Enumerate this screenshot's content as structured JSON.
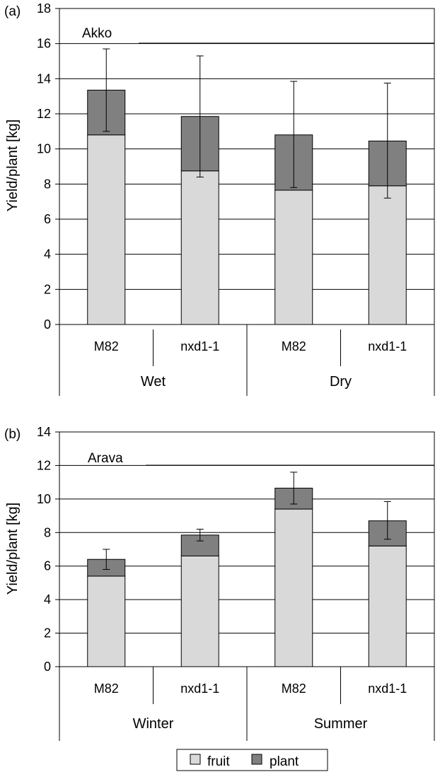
{
  "colors": {
    "fruit": "#d9d9d9",
    "plant": "#808080",
    "stroke": "#000000",
    "grid": "#000000"
  },
  "legend": {
    "items": [
      {
        "label": "fruit",
        "color": "#d9d9d9"
      },
      {
        "label": "plant",
        "color": "#808080"
      }
    ]
  },
  "chart_data": [
    {
      "type": "bar",
      "stacked": true,
      "panel_label": "(a)",
      "annotation": "Akko",
      "ylabel": "Yield/plant [kg]",
      "ylim": [
        0,
        18
      ],
      "yticks": [
        0,
        2,
        4,
        6,
        8,
        10,
        12,
        14,
        16,
        18
      ],
      "grid": true,
      "categories": [
        "M82",
        "nxd1-1",
        "M82",
        "nxd1-1"
      ],
      "groups": [
        {
          "label": "Wet",
          "span": 2
        },
        {
          "label": "Dry",
          "span": 2
        }
      ],
      "series": [
        {
          "name": "fruit",
          "values": [
            10.8,
            8.75,
            7.65,
            7.9
          ]
        },
        {
          "name": "plant",
          "values": [
            2.55,
            3.1,
            3.15,
            2.55
          ]
        }
      ],
      "error_bars": [
        {
          "low": 11.0,
          "high": 15.7
        },
        {
          "low": 8.4,
          "high": 15.3
        },
        {
          "low": 7.8,
          "high": 13.85
        },
        {
          "low": 7.2,
          "high": 13.75
        }
      ]
    },
    {
      "type": "bar",
      "stacked": true,
      "panel_label": "(b)",
      "annotation": "Arava",
      "ylabel": "Yield/plant [kg]",
      "ylim": [
        0,
        14
      ],
      "yticks": [
        0,
        2,
        4,
        6,
        8,
        10,
        12,
        14
      ],
      "grid": true,
      "categories": [
        "M82",
        "nxd1-1",
        "M82",
        "nxd1-1"
      ],
      "groups": [
        {
          "label": "Winter",
          "span": 2
        },
        {
          "label": "Summer",
          "span": 2
        }
      ],
      "series": [
        {
          "name": "fruit",
          "values": [
            5.4,
            6.6,
            9.4,
            7.2
          ]
        },
        {
          "name": "plant",
          "values": [
            1.0,
            1.25,
            1.25,
            1.5
          ]
        }
      ],
      "error_bars": [
        {
          "low": 5.8,
          "high": 7.0
        },
        {
          "low": 7.5,
          "high": 8.2
        },
        {
          "low": 9.7,
          "high": 11.6
        },
        {
          "low": 7.6,
          "high": 9.85
        }
      ]
    }
  ]
}
